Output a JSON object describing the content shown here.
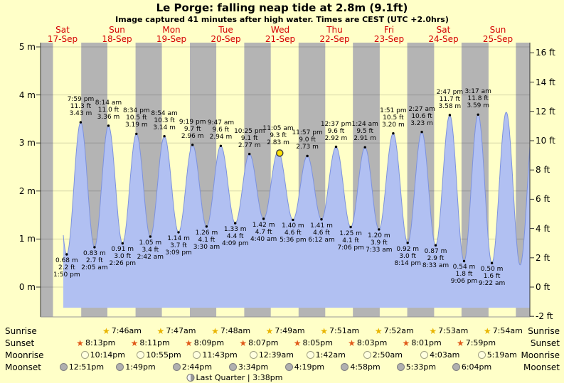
{
  "title": "Le Porge: falling  neap tide at 2.8m (9.1ft)",
  "subtitle": "Image captured 41 minutes after high water. Times are CEST (UTC +2.0hrs)",
  "days": [
    {
      "dow": "Sat",
      "date": "17-Sep"
    },
    {
      "dow": "Sun",
      "date": "18-Sep"
    },
    {
      "dow": "Mon",
      "date": "19-Sep"
    },
    {
      "dow": "Tue",
      "date": "20-Sep"
    },
    {
      "dow": "Wed",
      "date": "21-Sep"
    },
    {
      "dow": "Thu",
      "date": "22-Sep"
    },
    {
      "dow": "Fri",
      "date": "23-Sep"
    },
    {
      "dow": "Sat",
      "date": "24-Sep"
    },
    {
      "dow": "Sun",
      "date": "25-Sep"
    }
  ],
  "axes": {
    "left_ticks": [
      "5 m",
      "4 m",
      "3 m",
      "2 m",
      "1 m",
      "0 m"
    ],
    "right_ticks": [
      "16 ft",
      "14 ft",
      "12 ft",
      "10 ft",
      "8 ft",
      "6 ft",
      "4 ft",
      "2 ft",
      "0 ft",
      "-2 ft"
    ]
  },
  "colors": {
    "page_bg": "#ffffc8",
    "night_band": "#b4b4b4",
    "tide_fill": "#b1c0f2",
    "tide_edge": "#7d92de",
    "day_label_red": "#d40000",
    "marker": "#ffe200",
    "sunrise_star": "#e8b400",
    "sunset_star": "#e05818",
    "moonrise_circle": "#ffffe0",
    "moonset_circle": "#b0b0b0"
  },
  "chart_data": {
    "type": "area",
    "title": "Le Porge: falling  neap tide at 2.8m (9.1ft)",
    "x_axis": "days Sat 17-Sep through Sun 25-Sep",
    "y_axis_left_range_m": [
      0,
      5
    ],
    "y_axis_right_range_ft": [
      -2,
      16
    ],
    "curve_start_t": 12.3,
    "night_bands": [
      [
        2.275,
        7.75
      ],
      [
        20.217,
        31.767
      ],
      [
        44.183,
        55.783
      ],
      [
        68.15,
        79.8
      ],
      [
        92.117,
        103.817
      ],
      [
        116.083,
        127.85
      ],
      [
        140.05,
        151.867
      ],
      [
        164.017,
        175.883
      ],
      [
        187.983,
        199.9
      ],
      [
        211.95,
        218.12
      ]
    ],
    "tide_extremes": [
      {
        "kind": "low",
        "t": 13.833,
        "height_m": 0.68,
        "labels": [
          "1:50 pm",
          "2.2 ft",
          "0.68 m"
        ]
      },
      {
        "kind": "high",
        "t": 19.983,
        "height_m": 3.43,
        "labels": [
          "7:59 pm",
          "11.3 ft",
          "3.43 m"
        ]
      },
      {
        "kind": "low",
        "t": 26.083,
        "height_m": 0.83,
        "labels": [
          "2:05 am",
          "2.7 ft",
          "0.83 m"
        ]
      },
      {
        "kind": "high",
        "t": 32.233,
        "height_m": 3.36,
        "labels": [
          "8:14 am",
          "11.0 ft",
          "3.36 m"
        ]
      },
      {
        "kind": "low",
        "t": 38.433,
        "height_m": 0.91,
        "labels": [
          "2:26 pm",
          "3.0 ft",
          "0.91 m"
        ]
      },
      {
        "kind": "high",
        "t": 44.567,
        "height_m": 3.19,
        "labels": [
          "8:34 pm",
          "10.5 ft",
          "3.19 m"
        ]
      },
      {
        "kind": "low",
        "t": 50.7,
        "height_m": 1.05,
        "labels": [
          "2:42 am",
          "3.4 ft",
          "1.05 m"
        ]
      },
      {
        "kind": "high",
        "t": 56.9,
        "height_m": 3.14,
        "labels": [
          "8:54 am",
          "10.3 ft",
          "3.14 m"
        ]
      },
      {
        "kind": "low",
        "t": 63.15,
        "height_m": 1.14,
        "labels": [
          "3:09 pm",
          "3.7 ft",
          "1.14 m"
        ]
      },
      {
        "kind": "high",
        "t": 69.317,
        "height_m": 2.96,
        "labels": [
          "9:19 pm",
          "9.7 ft",
          "2.96 m"
        ]
      },
      {
        "kind": "low",
        "t": 75.5,
        "height_m": 1.26,
        "labels": [
          "3:30 am",
          "4.1 ft",
          "1.26 m"
        ]
      },
      {
        "kind": "high",
        "t": 81.783,
        "height_m": 2.94,
        "labels": [
          "9:47 am",
          "9.6 ft",
          "2.94 m"
        ]
      },
      {
        "kind": "low",
        "t": 88.15,
        "height_m": 1.33,
        "labels": [
          "4:09 pm",
          "4.4 ft",
          "1.33 m"
        ]
      },
      {
        "kind": "high",
        "t": 94.417,
        "height_m": 2.77,
        "labels": [
          "10:25 pm",
          "9.1 ft",
          "2.77 m"
        ]
      },
      {
        "kind": "low",
        "t": 100.667,
        "height_m": 1.42,
        "labels": [
          "4:40 am",
          "4.7 ft",
          "1.42 m"
        ]
      },
      {
        "kind": "high",
        "t": 107.083,
        "height_m": 2.83,
        "labels": [
          "11:05 am",
          "9.3 ft",
          "2.83 m"
        ]
      },
      {
        "kind": "low",
        "t": 113.6,
        "height_m": 1.4,
        "labels": [
          "5:36 pm",
          "4.6 ft",
          "1.40 m"
        ]
      },
      {
        "kind": "high",
        "t": 119.95,
        "height_m": 2.73,
        "labels": [
          "11:57 pm",
          "9.0 ft",
          "2.73 m"
        ]
      },
      {
        "kind": "low",
        "t": 126.2,
        "height_m": 1.41,
        "labels": [
          "6:12 am",
          "4.6 ft",
          "1.41 m"
        ]
      },
      {
        "kind": "high",
        "t": 132.617,
        "height_m": 2.92,
        "labels": [
          "12:37 pm",
          "9.6 ft",
          "2.92 m"
        ]
      },
      {
        "kind": "low",
        "t": 139.1,
        "height_m": 1.25,
        "labels": [
          "7:06 pm",
          "4.1 ft",
          "1.25 m"
        ]
      },
      {
        "kind": "high",
        "t": 145.4,
        "height_m": 2.91,
        "labels": [
          "1:24 am",
          "9.5 ft",
          "2.91 m"
        ]
      },
      {
        "kind": "low",
        "t": 151.55,
        "height_m": 1.2,
        "labels": [
          "7:33 am",
          "3.9 ft",
          "1.20 m"
        ]
      },
      {
        "kind": "high",
        "t": 157.85,
        "height_m": 3.2,
        "labels": [
          "1:51 pm",
          "10.5 ft",
          "3.20 m"
        ]
      },
      {
        "kind": "low",
        "t": 164.233,
        "height_m": 0.92,
        "labels": [
          "8:14 pm",
          "3.0 ft",
          "0.92 m"
        ]
      },
      {
        "kind": "high",
        "t": 170.45,
        "height_m": 3.23,
        "labels": [
          "2:27 am",
          "10.6 ft",
          "3.23 m"
        ]
      },
      {
        "kind": "low",
        "t": 176.55,
        "height_m": 0.87,
        "labels": [
          "8:33 am",
          "2.9 ft",
          "0.87 m"
        ]
      },
      {
        "kind": "high",
        "t": 182.783,
        "height_m": 3.58,
        "labels": [
          "2:47 pm",
          "11.7 ft",
          "3.58 m"
        ]
      },
      {
        "kind": "low",
        "t": 189.1,
        "height_m": 0.54,
        "labels": [
          "9:06 pm",
          "1.8 ft",
          "0.54 m"
        ]
      },
      {
        "kind": "high",
        "t": 195.283,
        "height_m": 3.59,
        "labels": [
          "3:17 am",
          "11.8 ft",
          "3.59 m"
        ]
      },
      {
        "kind": "low",
        "t": 201.367,
        "height_m": 0.5,
        "labels": [
          "9:22 am",
          "1.6 ft",
          "0.50 m"
        ]
      }
    ],
    "unlabeled_extremes_before": [
      {
        "t": 7.6,
        "height_m": 3.5
      }
    ],
    "unlabeled_extremes_after": [
      {
        "t": 207.7,
        "height_m": 3.64
      },
      {
        "t": 213.83,
        "height_m": 0.46
      },
      {
        "t": 220.2,
        "height_m": 3.7
      }
    ],
    "current_marker": {
      "t": 107.77,
      "height_m": 2.79
    }
  },
  "astro": {
    "row_labels": {
      "sunrise": "Sunrise",
      "sunset": "Sunset",
      "moonrise": "Moonrise",
      "moonset": "Moonset"
    },
    "sunrise": [
      {
        "t": 31.767,
        "time": "7:46am"
      },
      {
        "t": 55.783,
        "time": "7:47am"
      },
      {
        "t": 79.8,
        "time": "7:48am"
      },
      {
        "t": 103.817,
        "time": "7:49am"
      },
      {
        "t": 127.85,
        "time": "7:51am"
      },
      {
        "t": 151.867,
        "time": "7:52am"
      },
      {
        "t": 175.883,
        "time": "7:53am"
      },
      {
        "t": 199.9,
        "time": "7:54am"
      }
    ],
    "sunset": [
      {
        "t": 20.217,
        "time": "8:13pm"
      },
      {
        "t": 44.183,
        "time": "8:11pm"
      },
      {
        "t": 68.15,
        "time": "8:09pm"
      },
      {
        "t": 92.117,
        "time": "8:07pm"
      },
      {
        "t": 116.083,
        "time": "8:05pm"
      },
      {
        "t": 140.05,
        "time": "8:03pm"
      },
      {
        "t": 164.017,
        "time": "8:01pm"
      },
      {
        "t": 187.983,
        "time": "7:59pm"
      }
    ],
    "moonrise": [
      {
        "t": 22.233,
        "time": "10:14pm"
      },
      {
        "t": 46.917,
        "time": "10:55pm"
      },
      {
        "t": 71.717,
        "time": "11:43pm"
      },
      {
        "t": 96.65,
        "time": "12:39am"
      },
      {
        "t": 121.7,
        "time": "1:42am"
      },
      {
        "t": 146.833,
        "time": "2:50am"
      },
      {
        "t": 172.05,
        "time": "4:03am"
      },
      {
        "t": 197.317,
        "time": "5:19am"
      }
    ],
    "moonset": [
      {
        "t": 12.85,
        "time": "12:51pm"
      },
      {
        "t": 37.817,
        "time": "1:49pm"
      },
      {
        "t": 62.733,
        "time": "2:44pm"
      },
      {
        "t": 87.567,
        "time": "3:34pm"
      },
      {
        "t": 112.317,
        "time": "4:19pm"
      },
      {
        "t": 136.967,
        "time": "4:58pm"
      },
      {
        "t": 161.55,
        "time": "5:33pm"
      },
      {
        "t": 186.067,
        "time": "6:04pm"
      }
    ],
    "moon_phase": "Last Quarter | 3:38pm"
  }
}
